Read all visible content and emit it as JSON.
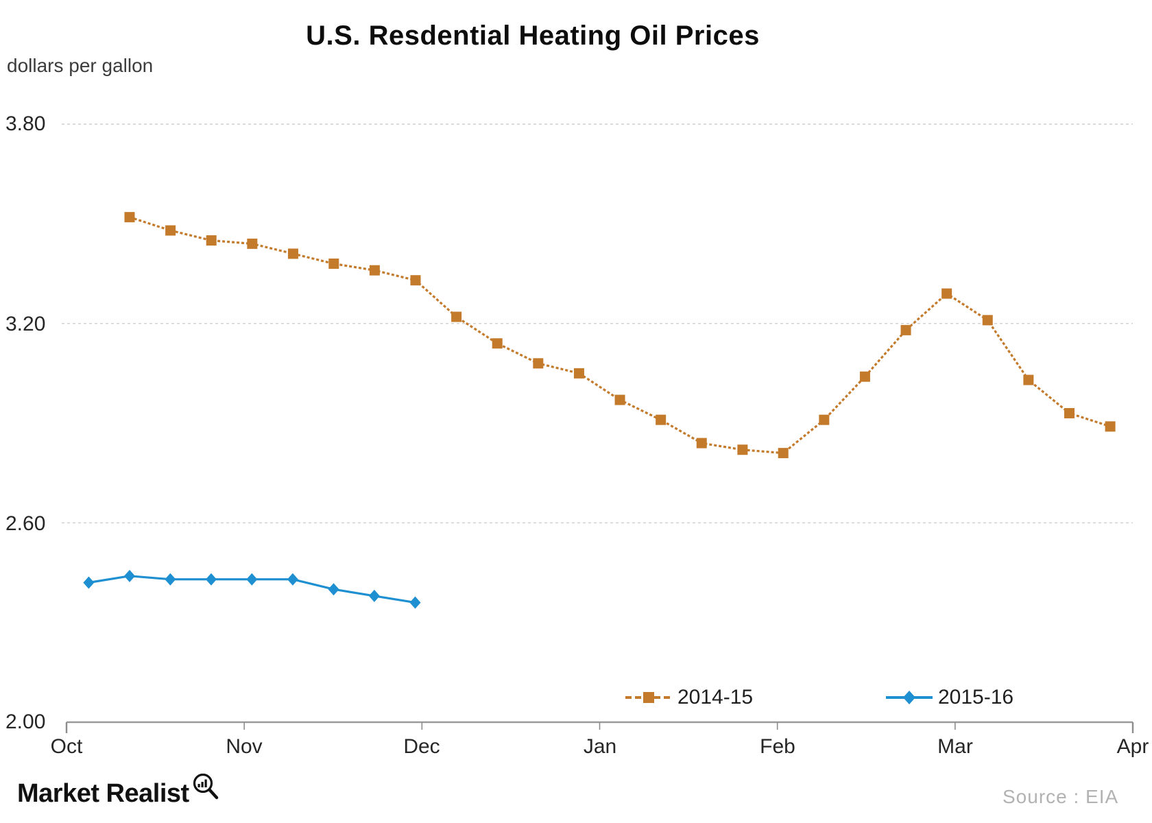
{
  "title": "U.S. Resdential Heating Oil Prices",
  "y_axis": {
    "unit_label": "dollars per gallon",
    "ticks": [
      "3.80",
      "3.20",
      "2.60",
      "2.00"
    ]
  },
  "x_axis": {
    "ticks": [
      "Oct",
      "Nov",
      "Dec",
      "Jan",
      "Feb",
      "Mar",
      "Apr"
    ]
  },
  "legend": [
    {
      "label": "2014-15",
      "color": "#C47A2B",
      "marker": "square",
      "line_style": "dashed"
    },
    {
      "label": "2015-16",
      "color": "#1E8FD1",
      "marker": "diamond",
      "line_style": "solid"
    }
  ],
  "source_note": "Source : EIA",
  "branding": {
    "logo_text": "Market Realist",
    "logo_icon": "magnifier-bar-chart-icon"
  },
  "chart_data": {
    "type": "line",
    "title": "U.S. Resdential Heating Oil Prices",
    "ylabel": "dollars per gallon",
    "ylim": [
      2.0,
      3.8
    ],
    "yticks": [
      3.8,
      3.2,
      2.6,
      2.0
    ],
    "grid": "horizontal dashed gridlines at 2.60, 3.20, 3.80; solid baseline axis at 2.00",
    "x_unit": "months, 0 = Oct tick, 6 = Apr tick (weekly data points)",
    "xlim": [
      0,
      6
    ],
    "xtick_labels": [
      "Oct",
      "Nov",
      "Dec",
      "Jan",
      "Feb",
      "Mar",
      "Apr"
    ],
    "legend_position": "bottom center, inside plot",
    "series": [
      {
        "name": "2014-15",
        "color": "#C47A2B",
        "marker": "square",
        "line_style": "dashed",
        "x": [
          0.355,
          0.585,
          0.815,
          1.045,
          1.275,
          1.504,
          1.734,
          1.964,
          2.194,
          2.424,
          2.654,
          2.884,
          3.114,
          3.344,
          3.574,
          3.804,
          4.033,
          4.263,
          4.493,
          4.723,
          4.953,
          5.183,
          5.413,
          5.643,
          5.873
        ],
        "values": [
          3.52,
          3.48,
          3.45,
          3.44,
          3.41,
          3.38,
          3.36,
          3.33,
          3.22,
          3.14,
          3.08,
          3.05,
          2.97,
          2.91,
          2.84,
          2.82,
          2.81,
          2.91,
          3.04,
          3.18,
          3.29,
          3.21,
          3.03,
          2.93,
          2.89
        ]
      },
      {
        "name": "2015-16",
        "color": "#1E8FD1",
        "marker": "diamond",
        "line_style": "solid",
        "x": [
          0.125,
          0.355,
          0.584,
          0.814,
          1.043,
          1.273,
          1.503,
          1.732,
          1.962
        ],
        "values": [
          2.42,
          2.44,
          2.43,
          2.43,
          2.43,
          2.43,
          2.4,
          2.38,
          2.36
        ]
      }
    ]
  }
}
